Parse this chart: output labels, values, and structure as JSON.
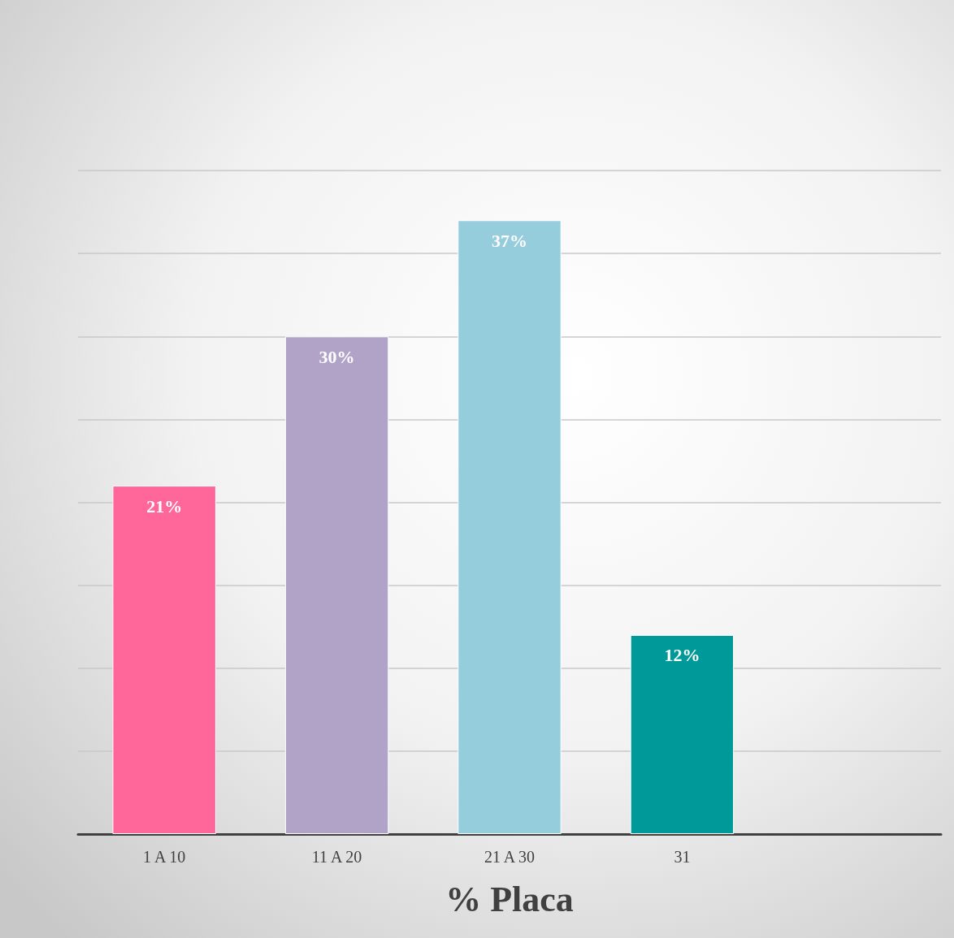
{
  "chart_data": {
    "type": "bar",
    "xlabel": "% Placa",
    "categories": [
      "1 A 10",
      "11 A 20",
      "21 A 30",
      "31",
      null
    ],
    "values": [
      21,
      30,
      37,
      12,
      null
    ],
    "colors": [
      "#ff6699",
      "#b1a2c8",
      "#95cddd",
      "#009999",
      "#009999"
    ],
    "value_labels": [
      "21%",
      "30%",
      "37%",
      "12%",
      null
    ],
    "ylim": [
      0,
      40
    ],
    "yticks": [
      {
        "value": 0,
        "label": null
      },
      {
        "value": 5,
        "label": null
      },
      {
        "value": 10,
        "label": null
      },
      {
        "value": 15,
        "label": null
      },
      {
        "value": 20,
        "label": null
      },
      {
        "value": 25,
        "label": null
      },
      {
        "value": 30,
        "label": null
      },
      {
        "value": 35,
        "label": null
      },
      {
        "value": 40,
        "label": null
      }
    ],
    "tick_labels": "x",
    "grid": "y"
  }
}
